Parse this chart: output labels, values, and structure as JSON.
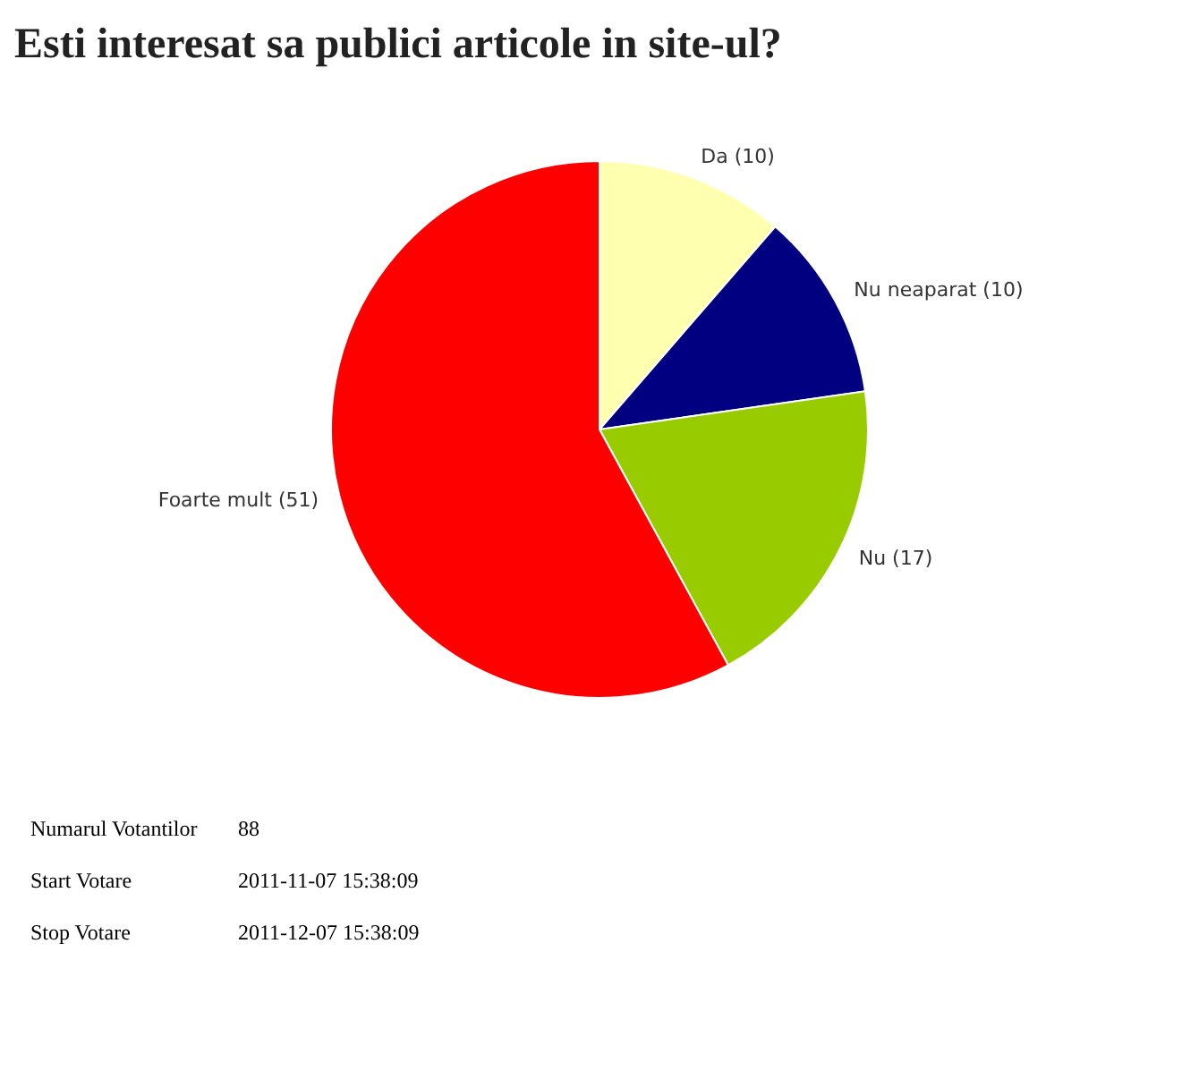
{
  "chart_data": {
    "type": "pie",
    "title": "Esti interesat sa publici articole in site-ul?",
    "categories": [
      "Da (10)",
      "Nu neaparat (10)",
      "Nu (17)",
      "Foarte mult (51)"
    ],
    "values": [
      10,
      10,
      17,
      51
    ],
    "colors": [
      "#ffffb0",
      "#000080",
      "#99cc00",
      "#ff0000"
    ],
    "annotations": [
      "Numarul Votantilor",
      "88",
      "Start Votare",
      "2011-11-07 15:38:09",
      "Stop Votare",
      "2011-12-07 15:38:09"
    ]
  }
}
